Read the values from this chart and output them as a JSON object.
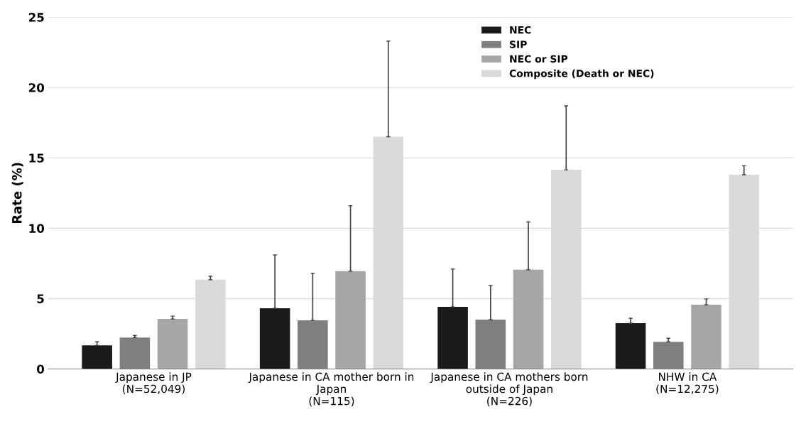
{
  "chart_data": {
    "type": "bar",
    "ylabel": "Rate (%)",
    "categories": [
      "Japanese in JP\n(N=52,049)",
      "Japanese in CA mother born in\nJapan\n(N=115)",
      "Japanese in CA mothers born\noutside of Japan\n(N=226)",
      "NHW in CA\n(N=12,275)"
    ],
    "series": [
      {
        "name": "NEC",
        "color": "#1a1a1a",
        "values": [
          1.67,
          4.31,
          4.41,
          3.25
        ],
        "errors": [
          [
            1.67,
            1.93
          ],
          [
            4.31,
            8.1
          ],
          [
            4.41,
            7.1
          ],
          [
            3.25,
            3.6
          ]
        ]
      },
      {
        "name": "SIP",
        "color": "#7f7f7f",
        "values": [
          2.23,
          3.45,
          3.5,
          1.93
        ],
        "errors": [
          [
            2.23,
            2.38
          ],
          [
            3.45,
            6.8
          ],
          [
            3.5,
            5.93
          ],
          [
            1.93,
            2.18
          ]
        ]
      },
      {
        "name": "NEC or SIP",
        "color": "#a6a6a6",
        "values": [
          3.55,
          6.95,
          7.05,
          4.56
        ],
        "errors": [
          [
            3.55,
            3.75
          ],
          [
            6.95,
            11.6
          ],
          [
            7.05,
            10.45
          ],
          [
            4.56,
            4.97
          ]
        ]
      },
      {
        "name": "Composite (Death or NEC)",
        "color": "#d9d9d9",
        "values": [
          6.34,
          16.5,
          14.15,
          13.8
        ],
        "errors": [
          [
            6.34,
            6.59
          ],
          [
            16.5,
            23.3
          ],
          [
            14.15,
            18.7
          ],
          [
            13.8,
            14.45
          ]
        ]
      }
    ],
    "ylim": [
      0,
      25
    ],
    "yticks": [
      0,
      5,
      10,
      15,
      20,
      25
    ],
    "grid": "y",
    "legend": "top"
  }
}
